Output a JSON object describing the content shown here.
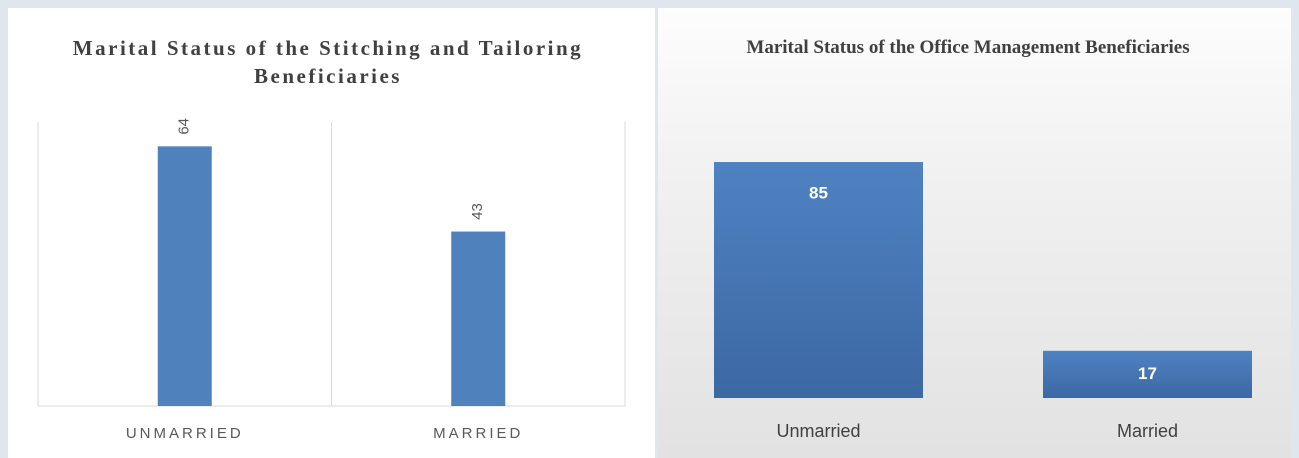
{
  "chart_data": [
    {
      "type": "bar",
      "title": "Marital Status of the Stitching and Tailoring Beneficiaries",
      "categories": [
        "UNMARRIED",
        "MARRIED"
      ],
      "values": [
        64,
        43
      ],
      "color": "#4f81bd",
      "ylim": [
        0,
        70
      ]
    },
    {
      "type": "bar",
      "title": "Marital Status of the Office Management Beneficiaries",
      "categories": [
        "Unmarried",
        "Married"
      ],
      "values": [
        85,
        17
      ],
      "color": "#4a7ebf",
      "ylim": [
        0,
        100
      ]
    }
  ]
}
